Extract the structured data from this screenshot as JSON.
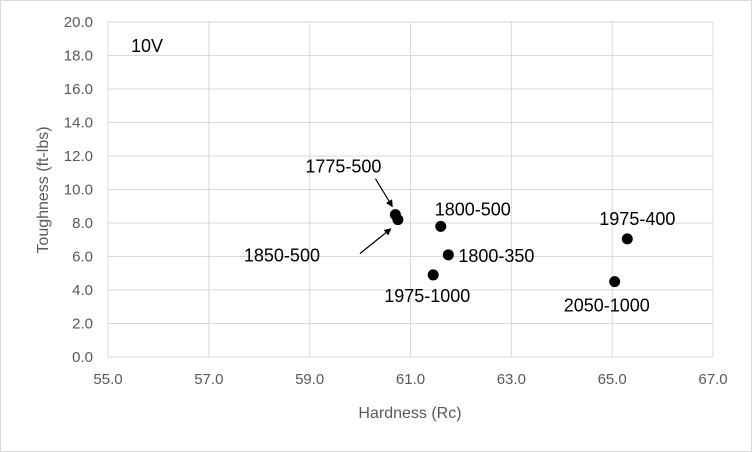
{
  "chart_data": {
    "type": "scatter",
    "annotation": "10V",
    "xlabel": "Hardness (Rc)",
    "ylabel": "Toughness (ft-lbs)",
    "xlim": [
      55.0,
      67.0
    ],
    "ylim": [
      0.0,
      20.0
    ],
    "x_ticks": [
      "55.0",
      "57.0",
      "59.0",
      "61.0",
      "63.0",
      "65.0",
      "67.0"
    ],
    "y_ticks": [
      "0.0",
      "2.0",
      "4.0",
      "6.0",
      "8.0",
      "10.0",
      "12.0",
      "14.0",
      "16.0",
      "18.0",
      "20.0"
    ],
    "grid": true,
    "marker_color": "#000000",
    "points": [
      {
        "label": "1775-500",
        "x": 60.7,
        "y": 8.5
      },
      {
        "label": "1850-500",
        "x": 60.75,
        "y": 8.2
      },
      {
        "label": "1800-500",
        "x": 61.6,
        "y": 7.8
      },
      {
        "label": "1800-350",
        "x": 61.75,
        "y": 6.1
      },
      {
        "label": "1975-1000",
        "x": 61.45,
        "y": 4.9
      },
      {
        "label": "1975-400",
        "x": 65.3,
        "y": 7.05
      },
      {
        "label": "2050-1000",
        "x": 65.05,
        "y": 4.5
      }
    ]
  }
}
